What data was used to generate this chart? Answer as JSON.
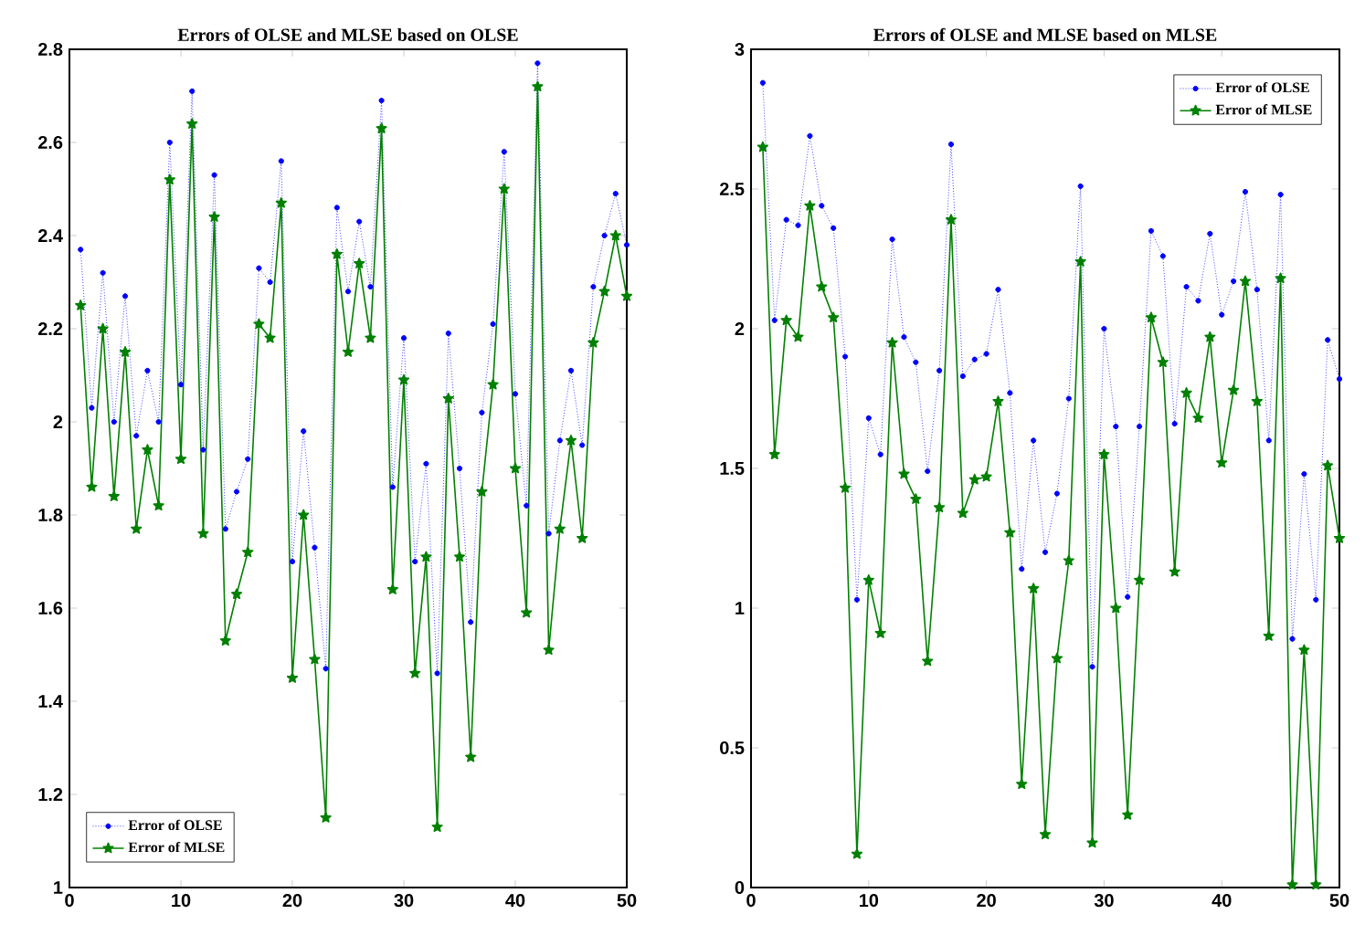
{
  "chart_data": [
    {
      "type": "line",
      "title": "Errors of OLSE and MLSE based on OLSE",
      "x": [
        1,
        2,
        3,
        4,
        5,
        6,
        7,
        8,
        9,
        10,
        11,
        12,
        13,
        14,
        15,
        16,
        17,
        18,
        19,
        20,
        21,
        22,
        23,
        24,
        25,
        26,
        27,
        28,
        29,
        30,
        31,
        32,
        33,
        34,
        35,
        36,
        37,
        38,
        39,
        40,
        41,
        42,
        43,
        44,
        45,
        46,
        47,
        48,
        49,
        50
      ],
      "xlim": [
        0,
        50
      ],
      "xticks": [
        0,
        10,
        20,
        30,
        40,
        50
      ],
      "ylim": [
        1,
        2.8
      ],
      "yticks": [
        1,
        1.2,
        1.4,
        1.6,
        1.8,
        2,
        2.2,
        2.4,
        2.6,
        2.8
      ],
      "legend": "bottom left",
      "series": [
        {
          "name": "Error of OLSE",
          "color": "#0000ff",
          "marker": "circle",
          "line_style": "dotted",
          "values": [
            2.37,
            2.03,
            2.32,
            2.0,
            2.27,
            1.97,
            2.11,
            2.0,
            2.6,
            2.08,
            2.71,
            1.94,
            2.53,
            1.77,
            1.85,
            1.92,
            2.33,
            2.3,
            2.56,
            1.7,
            1.98,
            1.73,
            1.47,
            2.46,
            2.28,
            2.43,
            2.29,
            2.69,
            1.86,
            2.18,
            1.7,
            1.91,
            1.46,
            2.19,
            1.9,
            1.57,
            2.02,
            2.21,
            2.58,
            2.06,
            1.82,
            2.77,
            1.76,
            1.96,
            2.11,
            1.95,
            2.29,
            2.4,
            2.49,
            2.38
          ]
        },
        {
          "name": "Error of MLSE",
          "color": "#008000",
          "marker": "star",
          "line_style": "solid",
          "values": [
            2.25,
            1.86,
            2.2,
            1.84,
            2.15,
            1.77,
            1.94,
            1.82,
            2.52,
            1.92,
            2.64,
            1.76,
            2.44,
            1.53,
            1.63,
            1.72,
            2.21,
            2.18,
            2.47,
            1.45,
            1.8,
            1.49,
            1.15,
            2.36,
            2.15,
            2.34,
            2.18,
            2.63,
            1.64,
            2.09,
            1.46,
            1.71,
            1.13,
            2.05,
            1.71,
            1.28,
            1.85,
            2.08,
            2.5,
            1.9,
            1.59,
            2.72,
            1.51,
            1.77,
            1.96,
            1.75,
            2.17,
            2.28,
            2.4,
            2.27
          ]
        }
      ]
    },
    {
      "type": "line",
      "title": "Errors of OLSE and MLSE based on MLSE",
      "x": [
        1,
        2,
        3,
        4,
        5,
        6,
        7,
        8,
        9,
        10,
        11,
        12,
        13,
        14,
        15,
        16,
        17,
        18,
        19,
        20,
        21,
        22,
        23,
        24,
        25,
        26,
        27,
        28,
        29,
        30,
        31,
        32,
        33,
        34,
        35,
        36,
        37,
        38,
        39,
        40,
        41,
        42,
        43,
        44,
        45,
        46,
        47,
        48,
        49,
        50
      ],
      "xlim": [
        0,
        50
      ],
      "xticks": [
        0,
        10,
        20,
        30,
        40,
        50
      ],
      "ylim": [
        0,
        3
      ],
      "yticks": [
        0,
        0.5,
        1,
        1.5,
        2,
        2.5,
        3
      ],
      "legend": "top right",
      "series": [
        {
          "name": "Error of OLSE",
          "color": "#0000ff",
          "marker": "circle",
          "line_style": "dotted",
          "values": [
            2.88,
            2.03,
            2.39,
            2.37,
            2.69,
            2.44,
            2.36,
            1.9,
            1.03,
            1.68,
            1.55,
            2.32,
            1.97,
            1.88,
            1.49,
            1.85,
            2.66,
            1.83,
            1.89,
            1.91,
            2.14,
            1.77,
            1.14,
            1.6,
            1.2,
            1.41,
            1.75,
            2.51,
            0.79,
            2.0,
            1.65,
            1.04,
            1.65,
            2.35,
            2.26,
            1.66,
            2.15,
            2.1,
            2.34,
            2.05,
            2.17,
            2.49,
            2.14,
            1.6,
            2.48,
            0.89,
            1.48,
            1.03,
            1.96,
            1.82
          ]
        },
        {
          "name": "Error of MLSE",
          "color": "#008000",
          "marker": "star",
          "line_style": "solid",
          "values": [
            2.65,
            1.55,
            2.03,
            1.97,
            2.44,
            2.15,
            2.04,
            1.43,
            0.12,
            1.1,
            0.91,
            1.95,
            1.48,
            1.39,
            0.81,
            1.36,
            2.39,
            1.34,
            1.46,
            1.47,
            1.74,
            1.27,
            0.37,
            1.07,
            0.19,
            0.82,
            1.17,
            2.24,
            0.16,
            1.55,
            1.0,
            0.26,
            1.1,
            2.04,
            1.88,
            1.13,
            1.77,
            1.68,
            1.97,
            1.52,
            1.78,
            2.17,
            1.74,
            0.9,
            2.18,
            0.01,
            0.85,
            0.01,
            1.51,
            1.25
          ]
        }
      ]
    }
  ]
}
